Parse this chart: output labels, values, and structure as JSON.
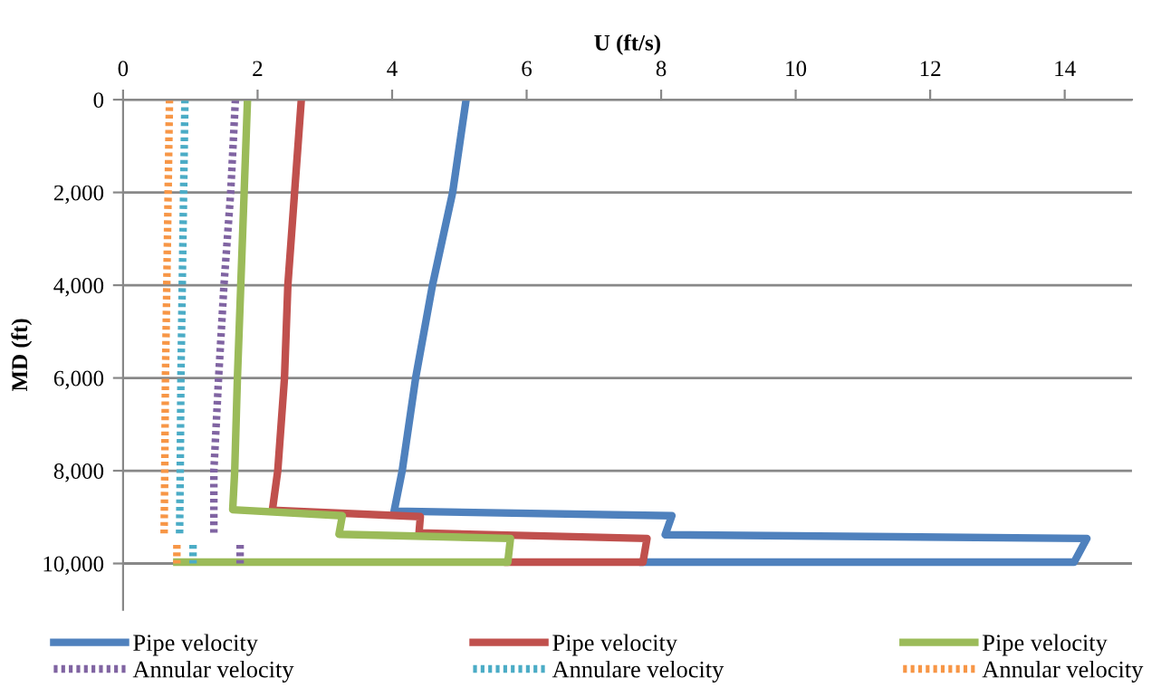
{
  "chart_data": {
    "type": "line",
    "xlabel": "U (ft/s)",
    "ylabel": "MD (ft)",
    "xlim": [
      0,
      15
    ],
    "xticks": [
      0,
      2,
      4,
      6,
      8,
      10,
      12,
      14
    ],
    "ylim": [
      11000,
      0
    ],
    "yticks": [
      0,
      {
        "value": 2000,
        "label": "2,000"
      },
      {
        "value": 4000,
        "label": "4,000"
      },
      {
        "value": 6000,
        "label": "6,000"
      },
      {
        "value": 8000,
        "label": "8,000"
      },
      {
        "value": 10000,
        "label": "10,000"
      }
    ],
    "grid": "y",
    "legend": "bottom",
    "series": [
      {
        "name": "Pipe velocity",
        "color": "#4f81bd",
        "line_style": "solid",
        "x": [
          5.1,
          4.9,
          4.6,
          4.35,
          4.15,
          4.03,
          8.16,
          8.06,
          14.33,
          14.14,
          7.73
        ],
        "values": [
          0,
          2000,
          4000,
          6000,
          8000,
          8870,
          8970,
          9380,
          9460,
          9970,
          9970
        ]
      },
      {
        "name": "Pipe velocity",
        "color": "#c0504d",
        "line_style": "solid",
        "x": [
          2.65,
          2.55,
          2.45,
          2.4,
          2.3,
          2.22,
          4.42,
          4.4,
          7.79,
          7.73,
          5.72
        ],
        "values": [
          0,
          2000,
          4000,
          6000,
          8000,
          8850,
          8990,
          9340,
          9460,
          9970,
          9970
        ]
      },
      {
        "name": "Pipe velocity",
        "color": "#9bbb59",
        "line_style": "solid",
        "x": [
          1.85,
          1.8,
          1.75,
          1.7,
          1.66,
          1.63,
          3.26,
          3.21,
          5.76,
          5.72,
          0.8
        ],
        "values": [
          0,
          2000,
          4000,
          6000,
          8000,
          8840,
          8970,
          9370,
          9460,
          9970,
          9970
        ]
      },
      {
        "name": "Annular velocity",
        "color": "#8064a2",
        "line_style": "dotted",
        "x": [
          1.67,
          1.6,
          1.5,
          1.42,
          1.35,
          1.35,
          null,
          1.74,
          1.74
        ],
        "values": [
          0,
          2000,
          4000,
          6000,
          8000,
          9420,
          null,
          9600,
          10000
        ]
      },
      {
        "name": "Annulare velocity",
        "color": "#4bacc6",
        "line_style": "dotted",
        "x": [
          0.92,
          0.9,
          0.88,
          0.86,
          0.85,
          0.84,
          null,
          1.04,
          1.04
        ],
        "values": [
          0,
          2000,
          4000,
          6000,
          8000,
          9420,
          null,
          9600,
          10000
        ]
      },
      {
        "name": "Annular velocity",
        "color": "#f79646",
        "line_style": "dotted",
        "x": [
          0.69,
          0.67,
          0.65,
          0.63,
          0.62,
          0.61,
          null,
          0.8,
          0.8
        ],
        "values": [
          0,
          2000,
          4000,
          6000,
          8000,
          9420,
          null,
          9600,
          10000
        ]
      }
    ]
  }
}
